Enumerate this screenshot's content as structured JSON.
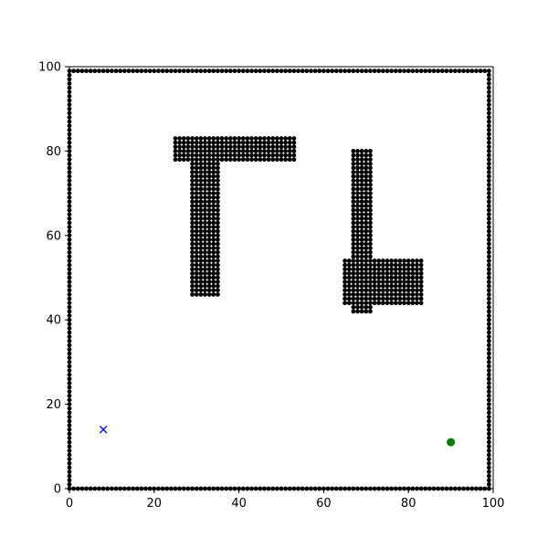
{
  "chart_data": {
    "type": "scatter",
    "title": "",
    "xlabel": "",
    "ylabel": "",
    "xlim": [
      0,
      100
    ],
    "ylim": [
      0,
      100
    ],
    "grid": false,
    "xticks": [
      0,
      20,
      40,
      60,
      80,
      100
    ],
    "yticks": [
      0,
      20,
      40,
      60,
      80,
      100
    ],
    "xtick_labels": [
      "0",
      "20",
      "40",
      "60",
      "80",
      "100"
    ],
    "ytick_labels": [
      "0",
      "20",
      "40",
      "60",
      "80",
      "100"
    ],
    "obstacle_color": "#000000",
    "obstacle_point_spacing": 1,
    "obstacles": [
      {
        "shape": "border",
        "x_range": [
          0,
          99
        ],
        "y_range": [
          0,
          99
        ]
      },
      {
        "shape": "block",
        "x_range": [
          25,
          53
        ],
        "y_range": [
          78,
          83
        ]
      },
      {
        "shape": "block",
        "x_range": [
          29,
          35
        ],
        "y_range": [
          46,
          78
        ]
      },
      {
        "shape": "block",
        "x_range": [
          67,
          71
        ],
        "y_range": [
          42,
          80
        ]
      },
      {
        "shape": "block",
        "x_range": [
          65,
          83
        ],
        "y_range": [
          44,
          54
        ]
      }
    ],
    "start": {
      "x": 8,
      "y": 14,
      "marker": "x",
      "color": "#0000ff"
    },
    "goal": {
      "x": 90,
      "y": 11,
      "marker": "circle",
      "color": "#008000"
    }
  }
}
